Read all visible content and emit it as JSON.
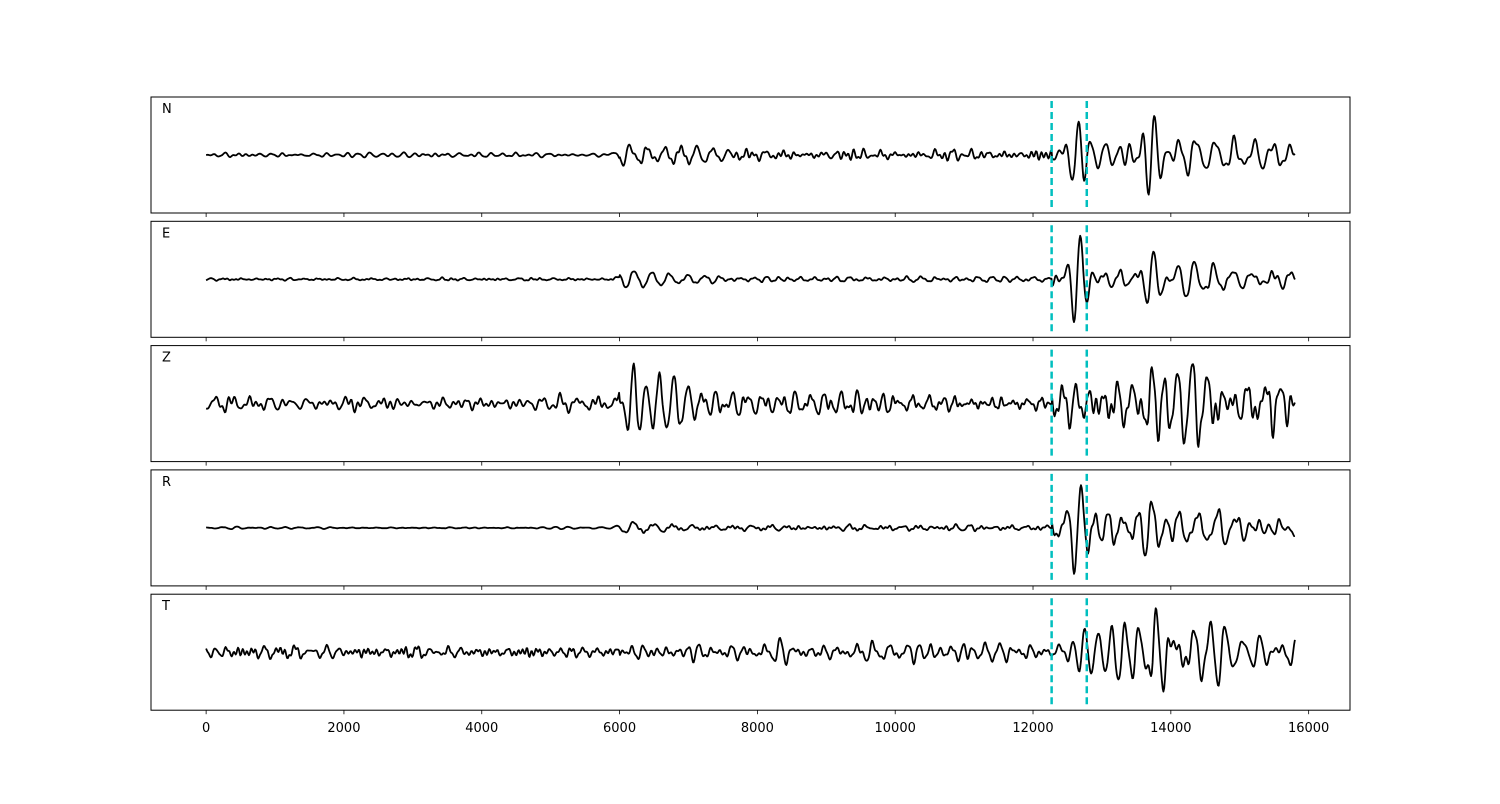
{
  "chart_data": {
    "type": "line",
    "x_axis": {
      "range": [
        -800,
        16600
      ],
      "ticks": [
        0,
        2000,
        4000,
        6000,
        8000,
        10000,
        12000,
        14000,
        16000
      ],
      "tick_labels": [
        "0",
        "2000",
        "4000",
        "6000",
        "8000",
        "10000",
        "12000",
        "14000",
        "16000"
      ],
      "label": ""
    },
    "y_axis": {
      "ticks_visible": false,
      "range": [
        -1.1,
        1.1
      ]
    },
    "grid": false,
    "line_color": "#000000",
    "marker_color": "#00bfbf",
    "markers_x": [
      12270,
      12780
    ],
    "x_extent": [
      0,
      15800
    ],
    "panels": [
      {
        "label": "N",
        "noise": [
          0.02,
          0.05,
          0.12
        ],
        "events": [
          {
            "t": 6100,
            "a": 0.2,
            "p": 240,
            "d": 1200
          },
          {
            "t": 12620,
            "a": 0.8,
            "p": 190,
            "d": 250
          },
          {
            "t": 13000,
            "a": 0.15,
            "p": 220,
            "d": 700
          },
          {
            "t": 13720,
            "a": 0.95,
            "p": 180,
            "d": 220
          },
          {
            "t": 14000,
            "a": 0.3,
            "p": 280,
            "d": 1800
          }
        ]
      },
      {
        "label": "E",
        "noise": [
          0.012,
          0.03,
          0.05
        ],
        "events": [
          {
            "t": 6150,
            "a": 0.13,
            "p": 260,
            "d": 1200
          },
          {
            "t": 12640,
            "a": 0.95,
            "p": 200,
            "d": 220
          },
          {
            "t": 12950,
            "a": 0.18,
            "p": 230,
            "d": 800
          },
          {
            "t": 13700,
            "a": 0.6,
            "p": 200,
            "d": 250
          },
          {
            "t": 14000,
            "a": 0.25,
            "p": 280,
            "d": 1800
          }
        ]
      },
      {
        "label": "Z",
        "noise": [
          0.06,
          0.1,
          0.22
        ],
        "events": [
          {
            "t": 6150,
            "a": 0.75,
            "p": 200,
            "d": 500
          },
          {
            "t": 6500,
            "a": 0.35,
            "p": 220,
            "d": 1200
          },
          {
            "t": 12700,
            "a": 0.25,
            "p": 220,
            "d": 600
          },
          {
            "t": 13700,
            "a": 0.8,
            "p": 180,
            "d": 250
          },
          {
            "t": 14000,
            "a": 0.2,
            "p": 250,
            "d": 1800
          }
        ]
      },
      {
        "label": "R",
        "noise": [
          0.01,
          0.025,
          0.08
        ],
        "events": [
          {
            "t": 6150,
            "a": 0.12,
            "p": 280,
            "d": 1200
          },
          {
            "t": 12650,
            "a": 0.95,
            "p": 210,
            "d": 230
          },
          {
            "t": 13000,
            "a": 0.14,
            "p": 230,
            "d": 800
          },
          {
            "t": 13680,
            "a": 0.6,
            "p": 200,
            "d": 260
          },
          {
            "t": 14000,
            "a": 0.2,
            "p": 300,
            "d": 1800
          }
        ]
      },
      {
        "label": "T",
        "noise": [
          0.05,
          0.08,
          0.18
        ],
        "events": [
          {
            "t": 6100,
            "a": 0.12,
            "p": 220,
            "d": 900
          },
          {
            "t": 12700,
            "a": 0.3,
            "p": 200,
            "d": 350
          },
          {
            "t": 13300,
            "a": 0.5,
            "p": 200,
            "d": 700
          },
          {
            "t": 13750,
            "a": 0.9,
            "p": 190,
            "d": 250
          },
          {
            "t": 14000,
            "a": 0.45,
            "p": 250,
            "d": 1800
          }
        ]
      }
    ]
  }
}
